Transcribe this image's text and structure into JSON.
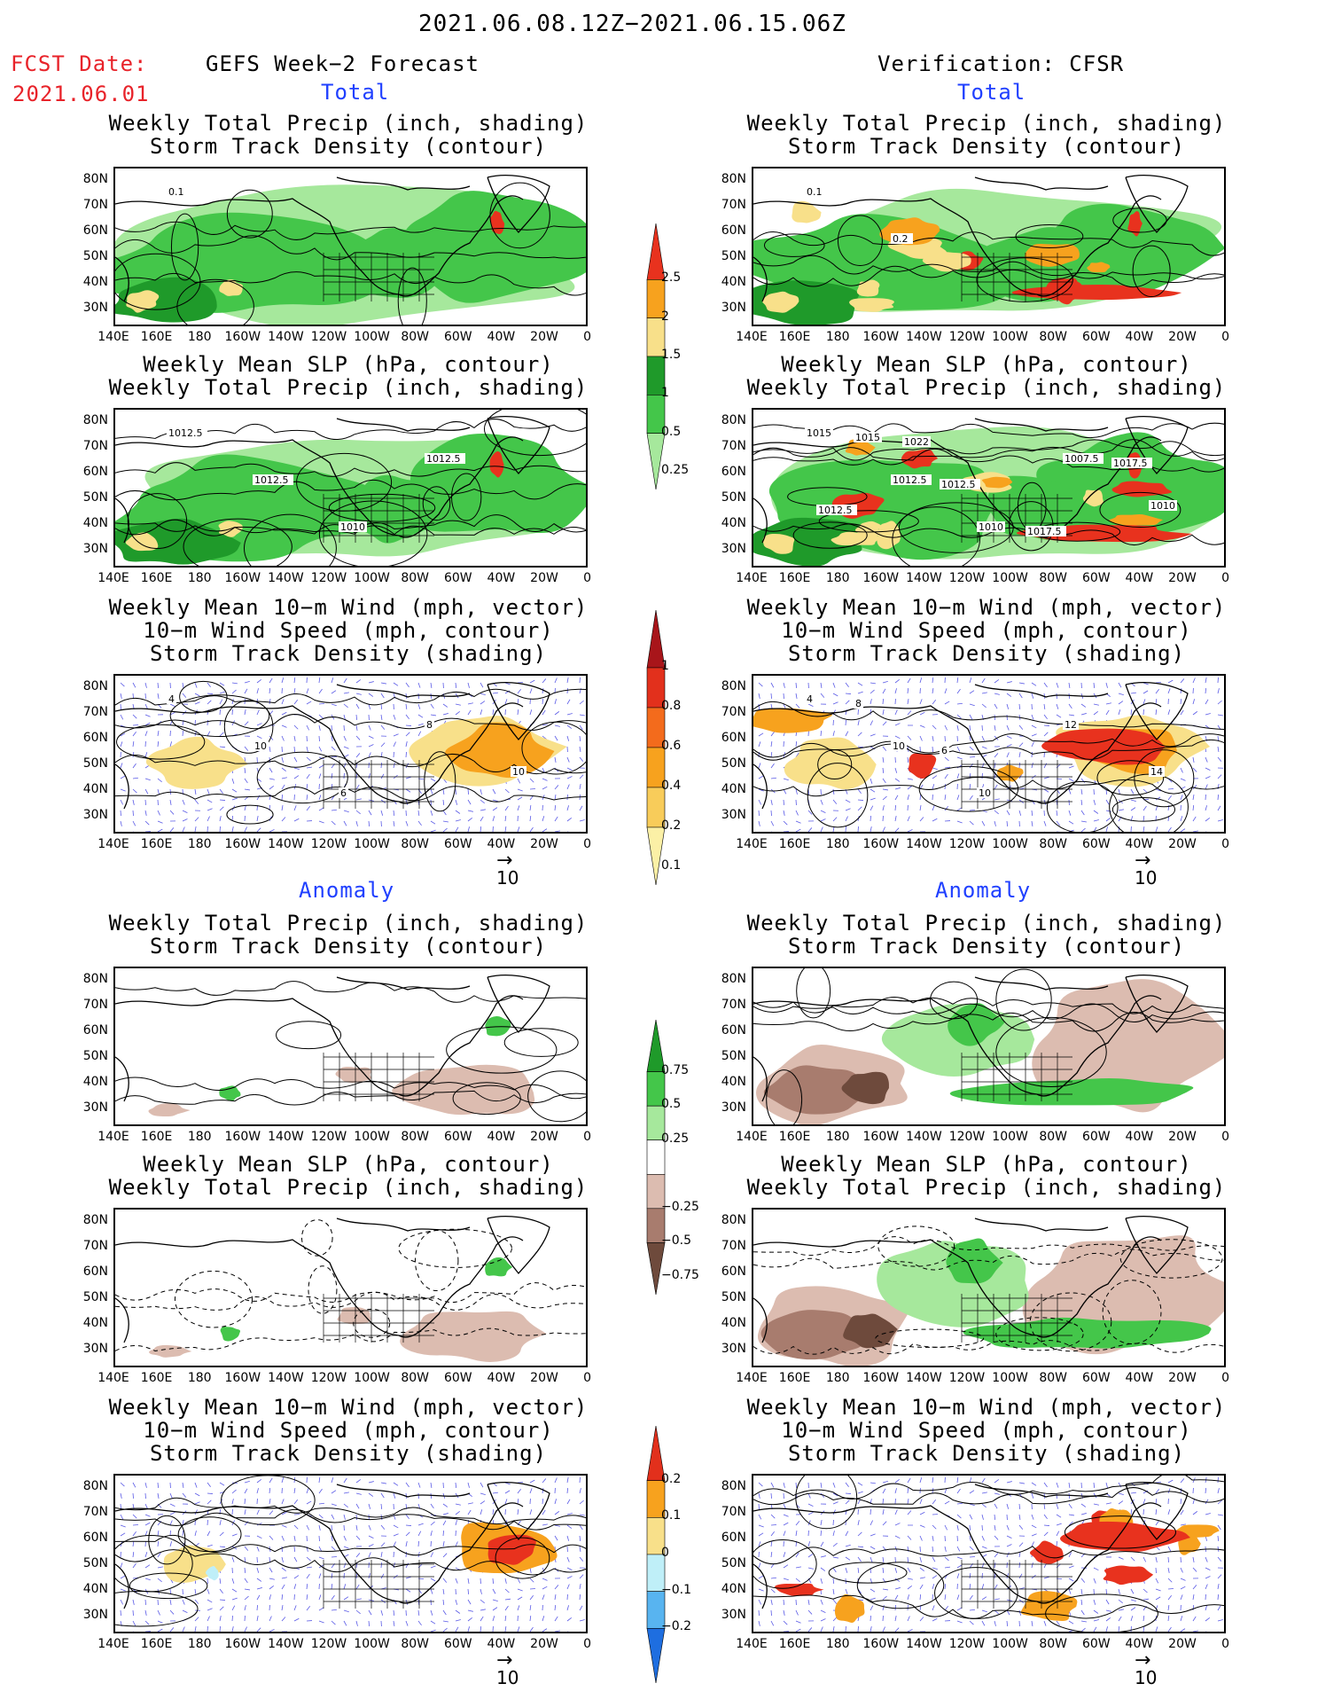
{
  "header": {
    "title": "2021.06.08.12Z−2021.06.15.06Z",
    "fcst_label": "FCST Date:",
    "fcst_date": "2021.06.01",
    "left_title": "GEFS Week−2 Forecast",
    "right_title": "Verification: CFSR"
  },
  "sections": {
    "total": "Total",
    "anomaly": "Anomaly"
  },
  "panel_titles": {
    "precip_storm": [
      "Weekly Total Precip (inch, shading)",
      "Storm Track Density (contour)"
    ],
    "slp_precip": [
      "Weekly Mean SLP (hPa, contour)",
      "Weekly Total Precip (inch, shading)"
    ],
    "wind_storm": [
      "Weekly Mean 10−m Wind (mph, vector)",
      "10−m Wind Speed (mph, contour)",
      "Storm Track Density (shading)"
    ]
  },
  "axes": {
    "lat_labels": [
      "80N",
      "70N",
      "60N",
      "50N",
      "40N",
      "30N"
    ],
    "lon_labels": [
      "140E",
      "160E",
      "180",
      "160W",
      "140W",
      "120W",
      "100W",
      "80W",
      "60W",
      "40W",
      "20W",
      "0"
    ]
  },
  "vector_ref": "10",
  "colorbars": {
    "precip_total": {
      "labels": [
        "2.5",
        "2",
        "1.5",
        "1",
        "0.5",
        "0.25"
      ],
      "colors": [
        "#e8321e",
        "#f7a21e",
        "#f8e08a",
        "#1f9a2a",
        "#44c64a",
        "#a6e89c"
      ]
    },
    "storm_total": {
      "labels": [
        "1",
        "0.8",
        "0.6",
        "0.4",
        "0.2",
        "0.1"
      ],
      "colors": [
        "#a8151a",
        "#e2301c",
        "#f36b1c",
        "#f7a21e",
        "#f8cc5a",
        "#fbf0a6"
      ]
    },
    "precip_anom": {
      "labels": [
        "0.75",
        "0.5",
        "0.25",
        "−0.25",
        "−0.5",
        "−0.75"
      ],
      "colors": [
        "#1f9a2a",
        "#44c64a",
        "#a6e89c",
        "#ffffff",
        "#dcbcb0",
        "#a87c6e",
        "#6e4a3c"
      ]
    },
    "storm_anom": {
      "labels": [
        "0.2",
        "0.1",
        "0",
        "−0.1",
        "−0.2"
      ],
      "colors": [
        "#e2301c",
        "#f7a21e",
        "#f8e08a",
        "#bfeff8",
        "#58b4f0",
        "#1e6ee0"
      ]
    }
  },
  "contour_labels": {
    "fc_precip": [
      "0.1"
    ],
    "ver_precip": [
      "0.1",
      "0.2"
    ],
    "fc_slp": [
      "1012.5",
      "1012.5",
      "1010",
      "1012.5"
    ],
    "ver_slp": [
      "1015",
      "1012.5",
      "1010",
      "1007.5",
      "1010",
      "1015",
      "1012.5",
      "1017.5",
      "1017.5",
      "1012.5",
      "1022"
    ],
    "fc_wind": [
      "4",
      "10",
      "6",
      "8",
      "10"
    ],
    "ver_wind": [
      "4",
      "10",
      "10",
      "12",
      "14",
      "8",
      "6"
    ]
  },
  "map_colors": {
    "green_light": "#a6e89c",
    "green_mid": "#44c64a",
    "green_dark": "#1f9a2a",
    "yellow": "#f8e08a",
    "orange": "#f7a21e",
    "red": "#e8321e",
    "brown_light": "#dcbcb0",
    "brown_mid": "#a87c6e",
    "brown_dark": "#6e4a3c",
    "vector": "#5a5ae6"
  }
}
